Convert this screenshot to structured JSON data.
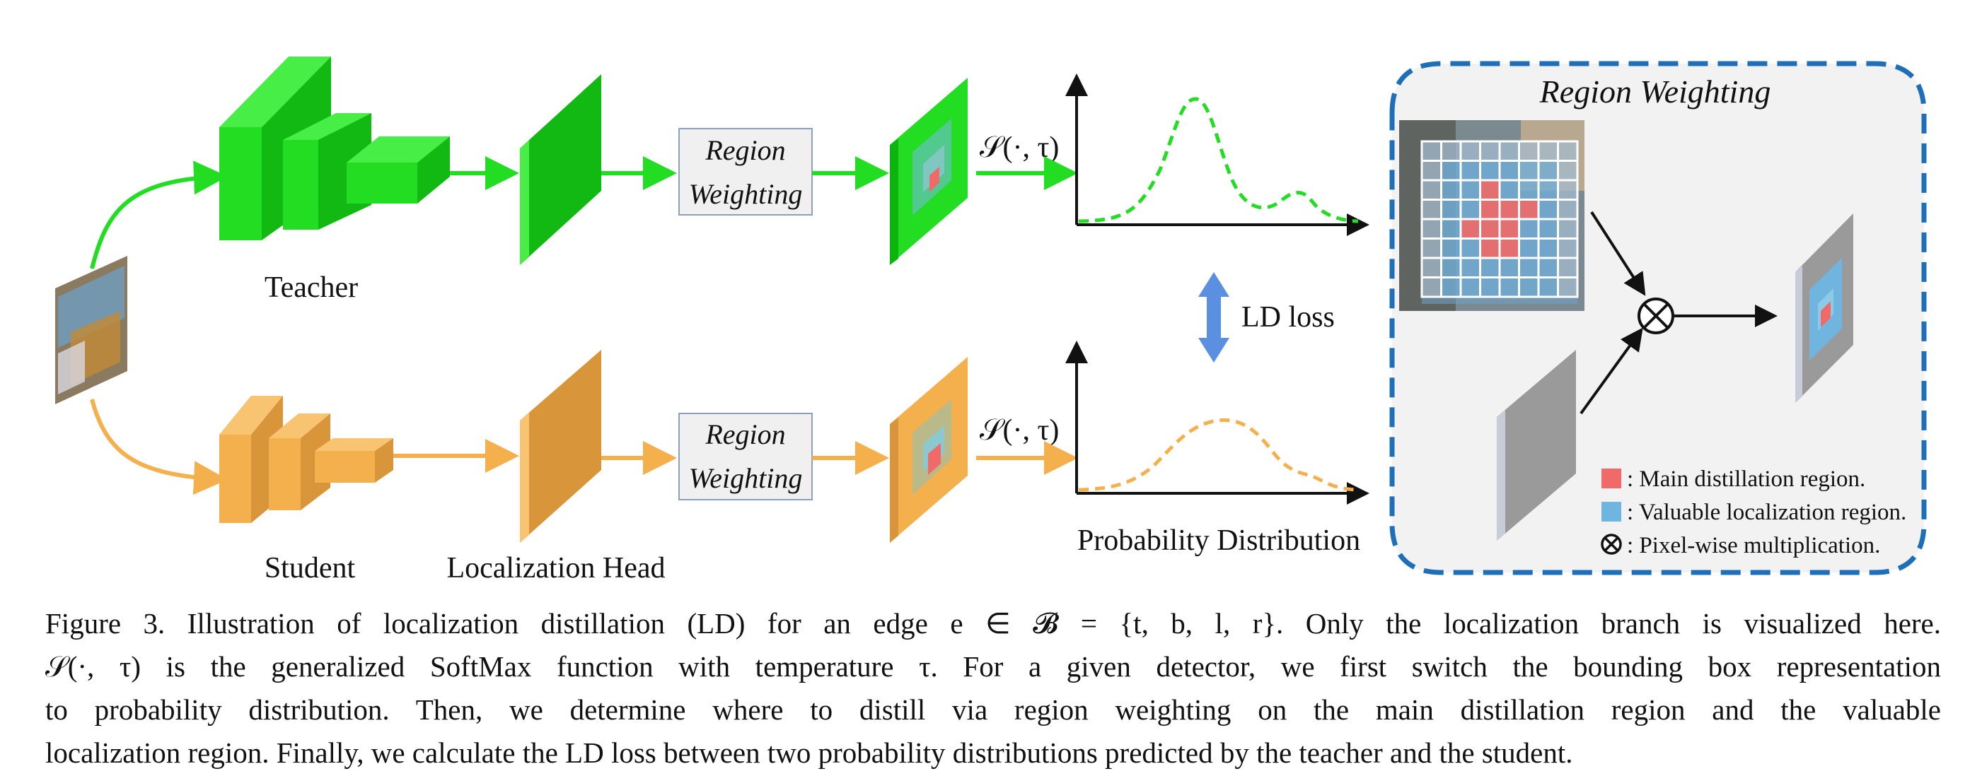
{
  "labels": {
    "teacher": "Teacher",
    "student": "Student",
    "localization_head": "Localization Head",
    "region_weighting_line1": "Region",
    "region_weighting_line2": "Weighting",
    "softmax": "𝒮(·, τ)",
    "ld_loss": "LD loss",
    "probability_distribution": "Probability Distribution",
    "panel_title": "Region Weighting"
  },
  "legend": [
    {
      "text": ": Main distillation region.",
      "color": "#f06a6a"
    },
    {
      "text": ": Valuable localization region.",
      "color": "#6fb5e0"
    },
    {
      "text": ": Pixel-wise multiplication.",
      "icon": "otimes-icon"
    }
  ],
  "colors": {
    "teacher": "#22dd22",
    "teacher_dark": "#0eb40e",
    "student": "#f5b04e",
    "student_dark": "#d9953a",
    "panel_border": "#1e6fb8",
    "ld_arrow": "#5b8fe0"
  },
  "caption": {
    "line1": "Figure 3. Illustration of localization distillation (LD) for an edge e ∈ 𝓑 = {t, b, l, r}. Only the localization branch is visualized here.",
    "line2": "𝒮(·, τ) is the generalized SoftMax function with temperature τ. For a given detector, we first switch the bounding box representation",
    "line3": "to probability distribution. Then, we determine where to distill via region weighting on the main distillation region and the valuable",
    "line4": "localization region. Finally, we calculate the LD loss between two probability distributions predicted by the teacher and the student."
  }
}
